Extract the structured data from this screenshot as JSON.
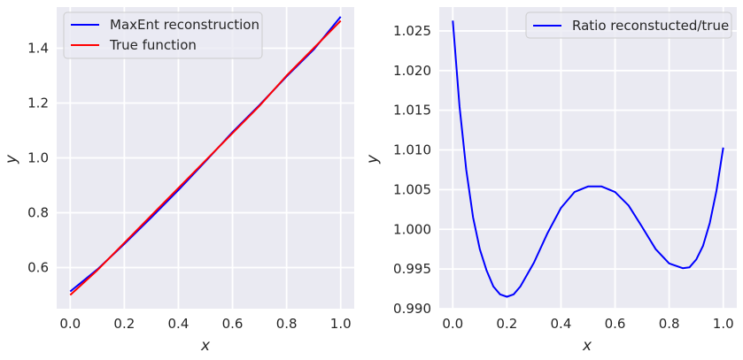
{
  "chart_data": [
    {
      "type": "line",
      "xlabel": "x",
      "ylabel": "y",
      "xlim": [
        -0.05,
        1.05
      ],
      "ylim": [
        0.45,
        1.55
      ],
      "xticks": [
        "0.0",
        "0.2",
        "0.4",
        "0.6",
        "0.8",
        "1.0"
      ],
      "yticks": [
        "0.6",
        "0.8",
        "1.0",
        "1.2",
        "1.4"
      ],
      "grid": true,
      "legend_position": "top-left",
      "series": [
        {
          "name": "MaxEnt reconstruction",
          "color": "#0000ff",
          "x": [
            0.0,
            0.1,
            0.2,
            0.3,
            0.4,
            0.5,
            0.6,
            0.7,
            0.8,
            0.9,
            1.0
          ],
          "y": [
            0.513,
            0.593,
            0.686,
            0.783,
            0.883,
            0.987,
            1.094,
            1.193,
            1.297,
            1.395,
            1.515
          ]
        },
        {
          "name": "True function",
          "color": "#ff0000",
          "x": [
            0.0,
            0.1,
            0.2,
            0.3,
            0.4,
            0.5,
            0.6,
            0.7,
            0.8,
            0.9,
            1.0
          ],
          "y": [
            0.5,
            0.59,
            0.69,
            0.79,
            0.89,
            0.99,
            1.09,
            1.19,
            1.3,
            1.4,
            1.5
          ]
        }
      ]
    },
    {
      "type": "line",
      "xlabel": "x",
      "ylabel": "y",
      "xlim": [
        -0.05,
        1.05
      ],
      "ylim": [
        0.99,
        1.028
      ],
      "xticks": [
        "0.0",
        "0.2",
        "0.4",
        "0.6",
        "0.8",
        "1.0"
      ],
      "yticks": [
        "0.990",
        "0.995",
        "1.000",
        "1.005",
        "1.010",
        "1.015",
        "1.020",
        "1.025"
      ],
      "grid": true,
      "legend_position": "top-right",
      "series": [
        {
          "name": "Ratio reconstucted/true",
          "color": "#0000ff",
          "x": [
            0.0,
            0.025,
            0.05,
            0.075,
            0.1,
            0.125,
            0.15,
            0.175,
            0.2,
            0.225,
            0.25,
            0.3,
            0.35,
            0.4,
            0.45,
            0.5,
            0.55,
            0.6,
            0.65,
            0.7,
            0.75,
            0.8,
            0.85,
            0.875,
            0.9,
            0.925,
            0.95,
            0.975,
            1.0
          ],
          "y": [
            1.0263,
            1.0155,
            1.0075,
            1.0015,
            0.9975,
            0.9948,
            0.9928,
            0.9918,
            0.9915,
            0.9918,
            0.9928,
            0.9958,
            0.9995,
            1.0027,
            1.0047,
            1.0054,
            1.0054,
            1.0047,
            1.003,
            1.0003,
            0.9975,
            0.9957,
            0.9951,
            0.9952,
            0.9962,
            0.9979,
            1.0008,
            1.0049,
            1.0103
          ]
        }
      ]
    }
  ]
}
